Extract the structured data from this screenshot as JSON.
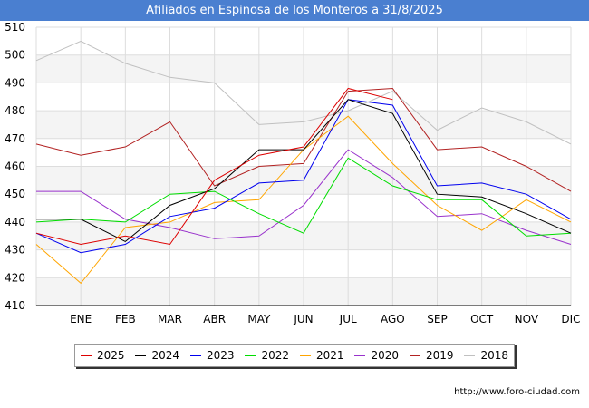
{
  "chart_data": {
    "type": "line",
    "title": "Afiliados en Espinosa de los Monteros a 31/8/2025",
    "categories": [
      "",
      "ENE",
      "FEB",
      "MAR",
      "ABR",
      "MAY",
      "JUN",
      "JUL",
      "AGO",
      "SEP",
      "OCT",
      "NOV",
      "DIC"
    ],
    "ylim": [
      410,
      510
    ],
    "yticks": [
      410,
      420,
      430,
      440,
      450,
      460,
      470,
      480,
      490,
      500,
      510
    ],
    "grid": true,
    "legend_position": "bottom",
    "series": [
      {
        "name": "2018",
        "color": "#c0c0c0",
        "values": [
          498,
          505,
          497,
          492,
          490,
          475,
          476,
          480,
          487,
          473,
          481,
          476,
          468
        ]
      },
      {
        "name": "2019",
        "color": "#b22222",
        "values": [
          468,
          464,
          467,
          476,
          453,
          460,
          461,
          487,
          488,
          466,
          467,
          460,
          451
        ]
      },
      {
        "name": "2020",
        "color": "#9932cc",
        "values": [
          451,
          451,
          441,
          438,
          434,
          435,
          446,
          466,
          456,
          442,
          443,
          437,
          432
        ]
      },
      {
        "name": "2021",
        "color": "#ffa500",
        "values": [
          432,
          418,
          438,
          440,
          447,
          448,
          466,
          478,
          461,
          446,
          437,
          448,
          440
        ]
      },
      {
        "name": "2022",
        "color": "#00dd00",
        "values": [
          440,
          441,
          440,
          450,
          451,
          443,
          436,
          463,
          453,
          448,
          448,
          435,
          436
        ]
      },
      {
        "name": "2023",
        "color": "#0000ee",
        "values": [
          436,
          429,
          432,
          442,
          445,
          454,
          455,
          484,
          482,
          453,
          454,
          450,
          441
        ]
      },
      {
        "name": "2024",
        "color": "#000000",
        "values": [
          441,
          441,
          433,
          446,
          452,
          466,
          466,
          484,
          479,
          450,
          449,
          443,
          436
        ]
      },
      {
        "name": "2025",
        "color": "#dd0000",
        "values": [
          436,
          432,
          435,
          432,
          455,
          464,
          467,
          488,
          484,
          null,
          null,
          null,
          null
        ]
      }
    ],
    "legend": [
      "2025",
      "2024",
      "2023",
      "2022",
      "2021",
      "2020",
      "2019",
      "2018"
    ],
    "footer": "http://www.foro-ciudad.com"
  }
}
